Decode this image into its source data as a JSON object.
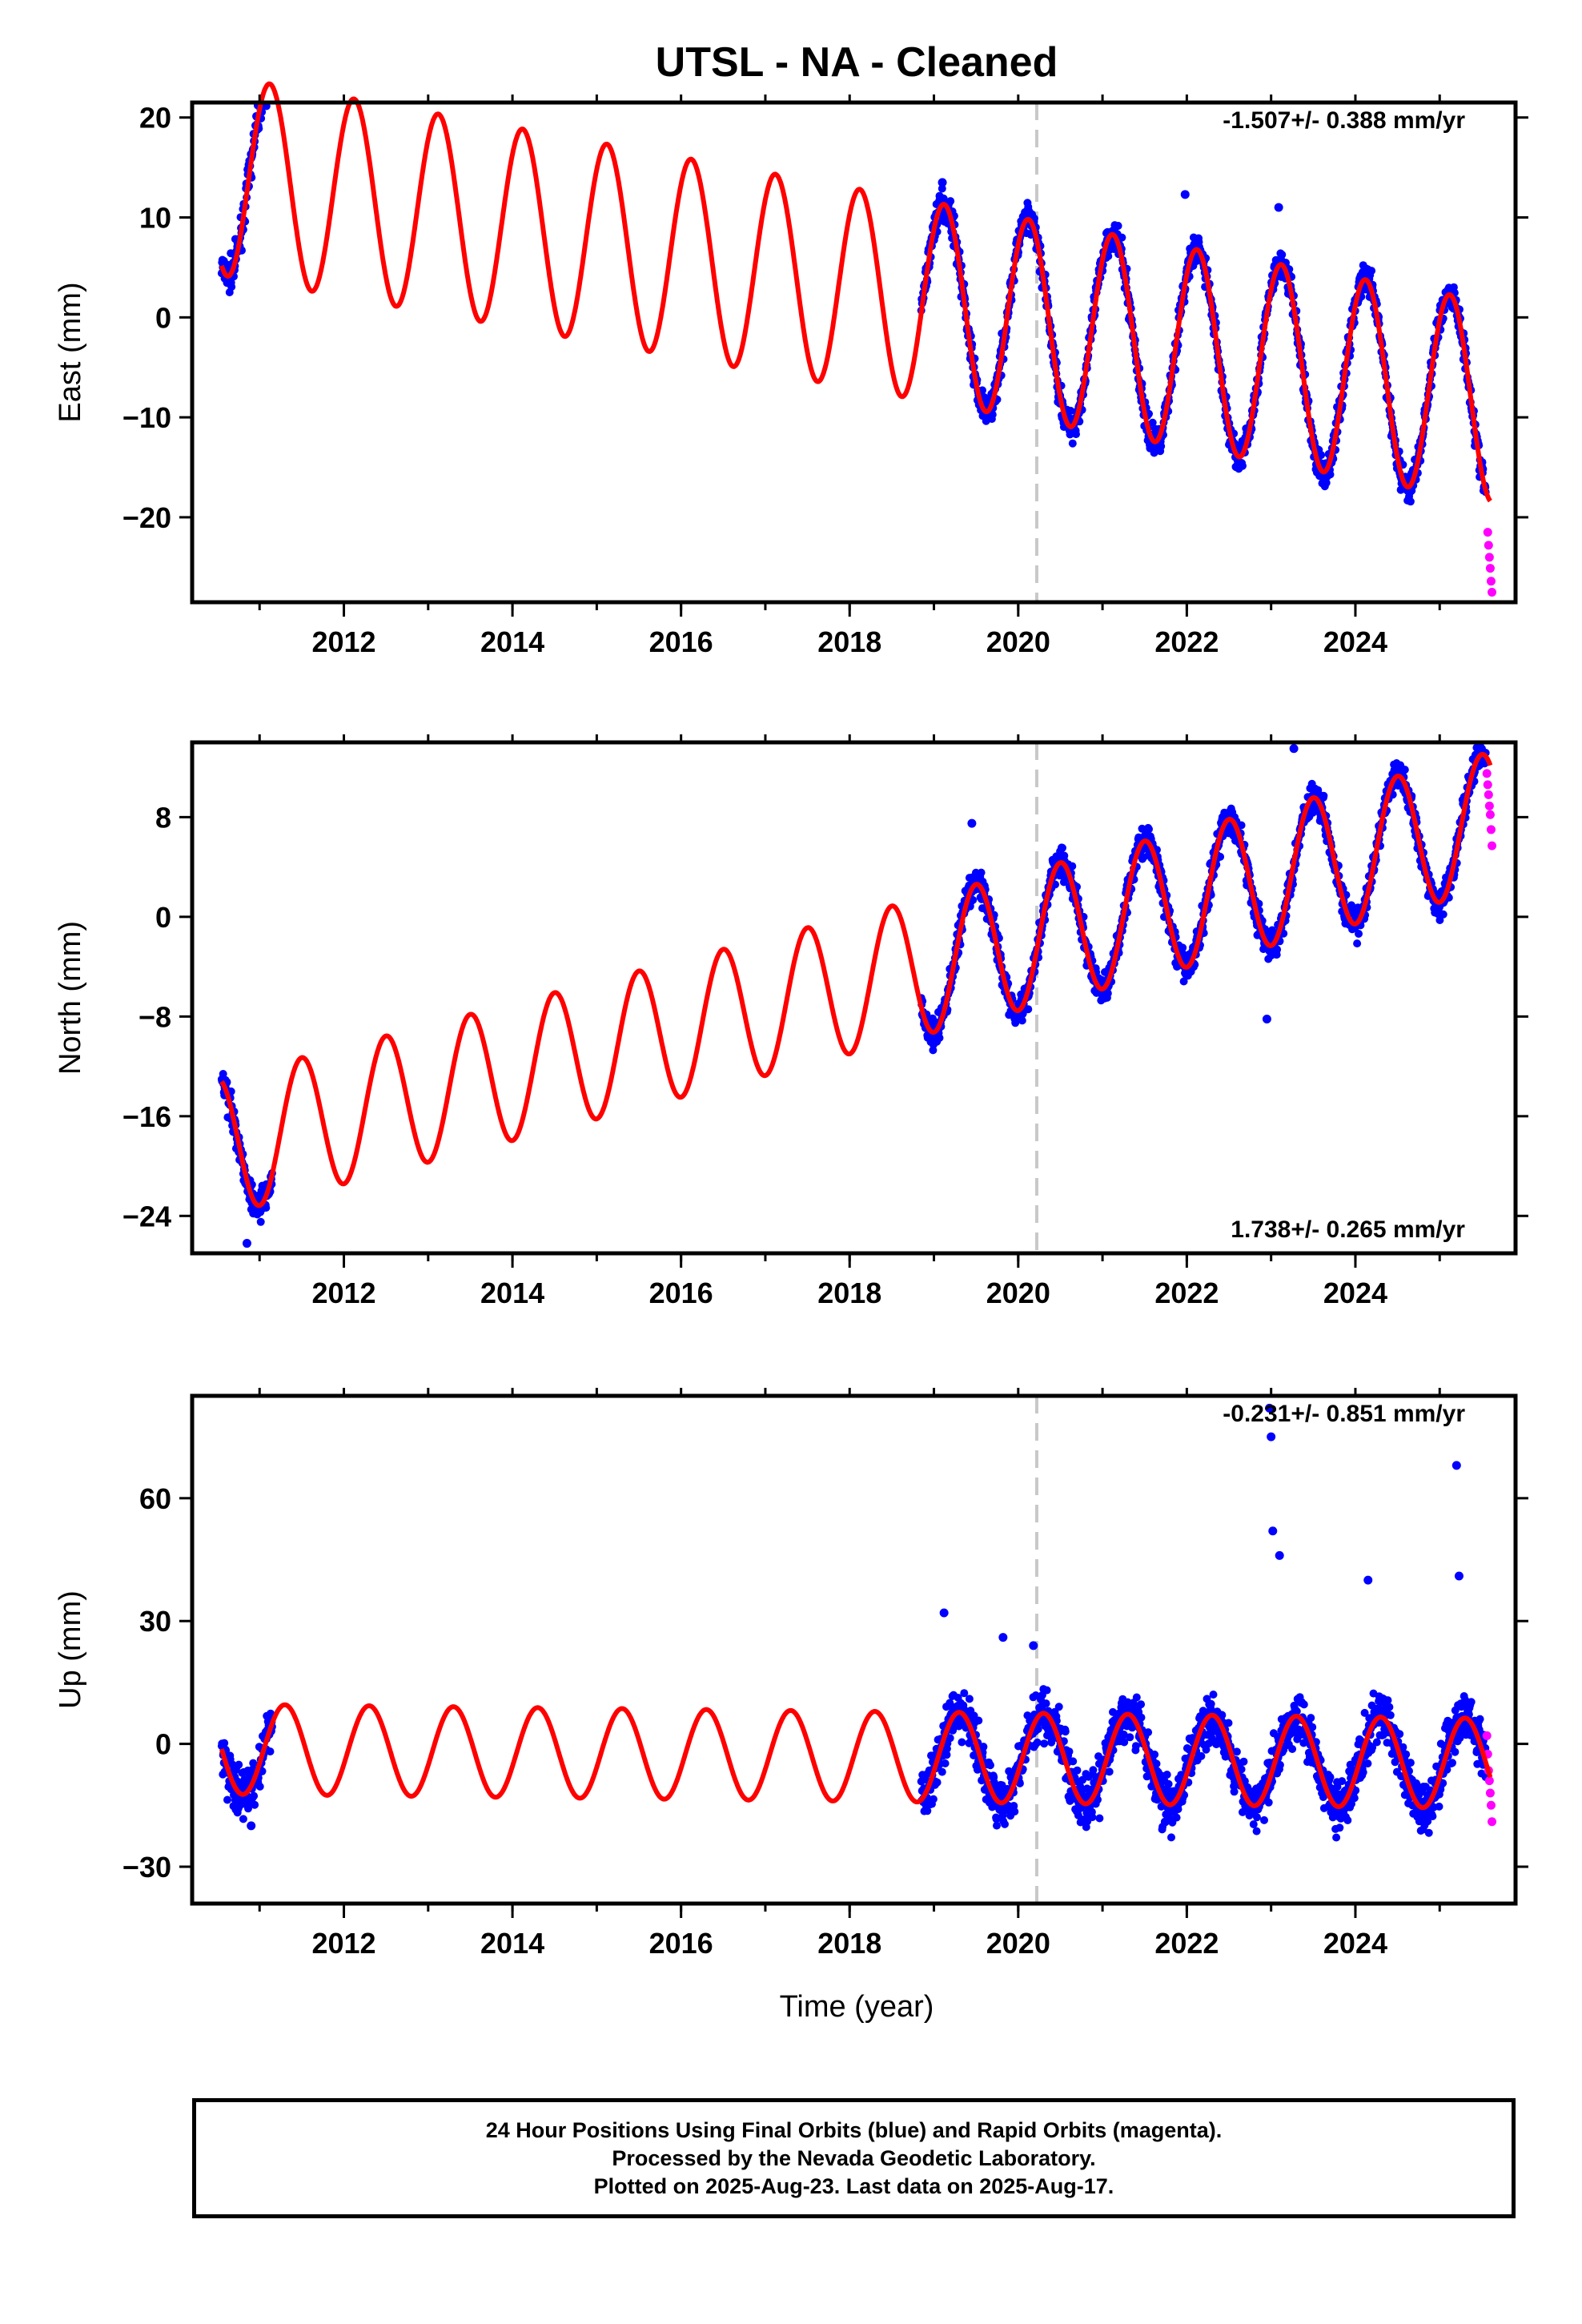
{
  "title": "UTSL  - NA - Cleaned",
  "x_axis_label": "Time (year)",
  "footer": {
    "line1": "24 Hour Positions Using Final Orbits (blue) and Rapid Orbits (magenta).",
    "line2": "Processed by the Nevada Geodetic Laboratory.",
    "line3": "Plotted on 2025-Aug-23. Last data on 2025-Aug-17."
  },
  "colors": {
    "final_orbits": "#0000ff",
    "rapid_orbits": "#ff00ff",
    "model": "#ff0000",
    "equipment_change": "#c8c8c8"
  },
  "chart_data": [
    {
      "type": "scatter",
      "panel": "east",
      "ylabel": "East (mm)",
      "rate_text": "-1.507+/- 0.388 mm/yr",
      "rate_position": "top-right",
      "xlim": [
        2010.2,
        2025.9
      ],
      "ylim": [
        -28.5,
        21.5
      ],
      "yticks": [
        -20,
        -10,
        0,
        10,
        20
      ],
      "ytick_labels": [
        "−20",
        "−10",
        "0",
        "10",
        "20"
      ],
      "xticks": [
        2012,
        2014,
        2016,
        2018,
        2020,
        2022,
        2024
      ],
      "xtick_labels": [
        "2012",
        "2014",
        "2016",
        "2018",
        "2020",
        "2022",
        "2024"
      ],
      "equipment_change_x": 2020.22,
      "model": {
        "start": 2010.55,
        "end": 2025.6,
        "offset": 3.0,
        "rate": -1.507,
        "ref": 2018,
        "amplitude": 10.0,
        "peak_phase": 0.12
      },
      "final_orbit_segments": [
        [
          2010.55,
          2011.15
        ],
        [
          2018.85,
          2025.55
        ]
      ],
      "final_orbit_range": [
        2010.55,
        2025.55
      ],
      "rapid_orbits": {
        "x": [
          2025.57,
          2025.58,
          2025.59,
          2025.6,
          2025.61,
          2025.62
        ],
        "y": [
          -21.5,
          -22.8,
          -24.0,
          -25.1,
          -26.4,
          -27.5
        ]
      },
      "outliers": {
        "x": [
          2019.1,
          2021.98,
          2023.09
        ],
        "y": [
          13.5,
          12.3,
          11.0
        ]
      }
    },
    {
      "type": "scatter",
      "panel": "north",
      "ylabel": "North (mm)",
      "rate_text": "1.738+/- 0.265 mm/yr",
      "rate_position": "bottom-right",
      "xlim": [
        2010.2,
        2025.9
      ],
      "ylim": [
        -27,
        14
      ],
      "yticks": [
        -24,
        -16,
        -8,
        0,
        8
      ],
      "ytick_labels": [
        "−24",
        "−16",
        "−8",
        "0",
        "8"
      ],
      "xticks": [
        2012,
        2014,
        2016,
        2018,
        2020,
        2022,
        2024
      ],
      "xtick_labels": [
        "2012",
        "2014",
        "2016",
        "2018",
        "2020",
        "2022",
        "2024"
      ],
      "equipment_change_x": 2020.22,
      "model": {
        "start": 2010.55,
        "end": 2025.6,
        "offset": -5.5,
        "rate": 1.738,
        "ref": 2018,
        "amplitude": 5.5,
        "peak_phase": 0.5
      },
      "final_orbit_segments": [
        [
          2010.55,
          2011.15
        ],
        [
          2018.85,
          2025.55
        ]
      ],
      "final_orbit_range": [
        2010.55,
        2025.55
      ],
      "rapid_orbits": {
        "x": [
          2025.56,
          2025.57,
          2025.58,
          2025.59,
          2025.6,
          2025.61,
          2025.62
        ],
        "y": [
          11.5,
          10.6,
          9.8,
          8.9,
          8.2,
          7.0,
          5.7
        ]
      },
      "outliers": {
        "x": [
          2010.85,
          2019.45,
          2022.95,
          2023.27
        ],
        "y": [
          -26.2,
          7.5,
          -8.2,
          13.5
        ]
      }
    },
    {
      "type": "scatter",
      "panel": "up",
      "ylabel": "Up (mm)",
      "rate_text": "-0.231+/- 0.851 mm/yr",
      "rate_position": "top-right",
      "xlim": [
        2010.2,
        2025.9
      ],
      "ylim": [
        -39,
        85
      ],
      "yticks": [
        -30,
        0,
        30,
        60
      ],
      "ytick_labels": [
        "−30",
        "0",
        "30",
        "60"
      ],
      "xticks": [
        2012,
        2014,
        2016,
        2018,
        2020,
        2022,
        2024
      ],
      "xtick_labels": [
        "2012",
        "2014",
        "2016",
        "2018",
        "2020",
        "2022",
        "2024"
      ],
      "equipment_change_x": 2020.22,
      "model": {
        "start": 2010.55,
        "end": 2025.6,
        "offset": -3.0,
        "rate": -0.231,
        "ref": 2018,
        "amplitude": 11.0,
        "peak_phase": 0.3
      },
      "final_orbit_segments": [
        [
          2010.55,
          2011.15
        ],
        [
          2018.85,
          2025.55
        ]
      ],
      "final_orbit_range": [
        2010.55,
        2025.55
      ],
      "rapid_orbits": {
        "x": [
          2025.56,
          2025.57,
          2025.58,
          2025.59,
          2025.6,
          2025.61,
          2025.62
        ],
        "y": [
          2.0,
          -2.5,
          -6.5,
          -9.0,
          -12.0,
          -15.0,
          -19.0
        ]
      },
      "outliers": {
        "x": [
          2019.12,
          2019.82,
          2020.18,
          2022.98,
          2023.0,
          2023.02,
          2023.1,
          2024.15,
          2025.2,
          2025.23,
          2010.9
        ],
        "y": [
          32,
          26,
          24,
          82,
          75,
          52,
          46,
          40,
          68,
          41,
          -20
        ]
      }
    }
  ]
}
